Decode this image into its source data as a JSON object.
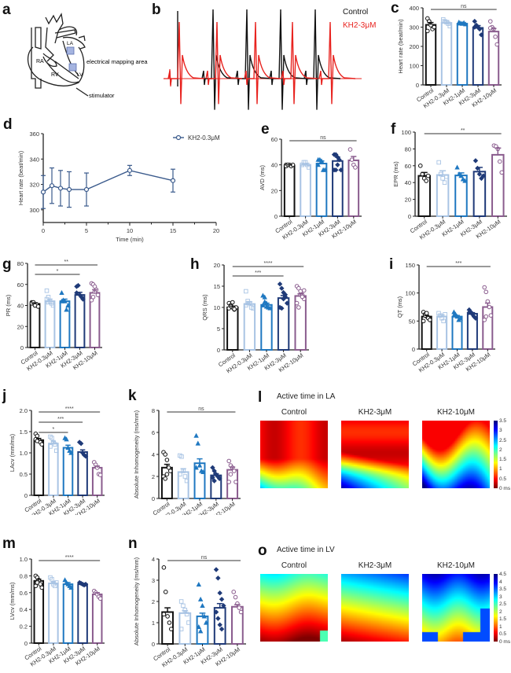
{
  "panels": {
    "a": {
      "letter": "a",
      "labels": {
        "ra": "RA",
        "rv": "RV",
        "la": "LA",
        "lv": "LV",
        "mapping": "electrical mapping area",
        "stimulator": "stimulator"
      }
    },
    "b": {
      "letter": "b",
      "legend": [
        {
          "name": "Control",
          "color": "#111111"
        },
        {
          "name": "KH2-3μM",
          "color": "#e8231f"
        }
      ]
    },
    "l": {
      "letter": "l",
      "title": "Active time in LA",
      "maps": [
        "Control",
        "KH2-3μM",
        "KH2-10μM"
      ],
      "colorbar_ticks": [
        "3.5",
        "3",
        "2.5",
        "2",
        "1.5",
        "1",
        "0.5",
        "0 ms"
      ]
    },
    "o": {
      "letter": "o",
      "title": "Active time in LV",
      "maps": [
        "Control",
        "KH2-3μM",
        "KH2-10μM"
      ],
      "colorbar_ticks": [
        "4.5",
        "4",
        "3.5",
        "3",
        "2.5",
        "2",
        "1.5",
        "1",
        "0.5",
        "0 ms"
      ]
    }
  },
  "group_colors": [
    "#111111",
    "#a9c4e4",
    "#1f78c1",
    "#1f3a78",
    "#8a5c8e"
  ],
  "chart_data": [
    {
      "id": "c",
      "letter": "c",
      "type": "bar",
      "categories": [
        "Control",
        "KH2-0.3μM",
        "KH2-1μM",
        "KH2-3μM",
        "KH2-10μM"
      ],
      "values": [
        312,
        322,
        318,
        296,
        277
      ],
      "errors": [
        12,
        12,
        6,
        12,
        16
      ],
      "points": [
        [
          345,
          330,
          310,
          290,
          300,
          280,
          330
        ],
        [
          340,
          330,
          325,
          318,
          305,
          330
        ],
        [
          325,
          320,
          318,
          322,
          315,
          320
        ],
        [
          330,
          310,
          300,
          290,
          260,
          300
        ],
        [
          330,
          300,
          290,
          250,
          210,
          295
        ]
      ],
      "markers": [
        "circle",
        "square",
        "triangle",
        "diamond",
        "circle"
      ],
      "ylabel": "Heart rate (beat/min)",
      "ylim": [
        0,
        400
      ],
      "yticks": [
        0,
        100,
        200,
        300,
        400
      ],
      "sig": [
        {
          "from": 0,
          "to": 4,
          "label": "ns"
        }
      ]
    },
    {
      "id": "d",
      "letter": "d",
      "type": "line",
      "series": [
        {
          "name": "KH2-0.3μM",
          "x": [
            0,
            1,
            2,
            3,
            5,
            10,
            15
          ],
          "y": [
            314,
            319,
            317,
            316,
            316,
            331,
            323
          ],
          "err": [
            13,
            14,
            14,
            14,
            13,
            4,
            9
          ]
        }
      ],
      "xlabel": "Time (min)",
      "ylabel": "Heart rate (beat/min)",
      "xlim": [
        0,
        20
      ],
      "xticks": [
        0,
        5,
        10,
        15,
        20
      ],
      "ylim": [
        290,
        360
      ],
      "yticks": [
        300,
        320,
        340,
        360
      ],
      "legend": "top-right",
      "color": "#3a5a8c"
    },
    {
      "id": "e",
      "letter": "e",
      "type": "bar",
      "categories": [
        "Control",
        "KH2-0.3μM",
        "KH2-1μM",
        "KH2-3μM",
        "KH2-10μM"
      ],
      "values": [
        39.5,
        40,
        41,
        43,
        43.5
      ],
      "errors": [
        0.5,
        1,
        2,
        3,
        3
      ],
      "points": [
        [
          40,
          40,
          40,
          39,
          40,
          39,
          40
        ],
        [
          40,
          42,
          42,
          40,
          38,
          40
        ],
        [
          44,
          44,
          43,
          36,
          36,
          40
        ],
        [
          48,
          48,
          46,
          44,
          36,
          36,
          36,
          40
        ],
        [
          52,
          44,
          40,
          38
        ]
      ],
      "markers": [
        "circle",
        "square",
        "triangle",
        "diamond",
        "circle"
      ],
      "ylabel": "AVD (ms)",
      "ylim": [
        0,
        60
      ],
      "yticks": [
        0,
        20,
        40,
        60
      ],
      "sig": [
        {
          "from": 0,
          "to": 4,
          "label": "ns"
        }
      ]
    },
    {
      "id": "f",
      "letter": "f",
      "type": "bar",
      "categories": [
        "Control",
        "KH2-0.3μM",
        "KH2-1μM",
        "KH2-3μM",
        "KH2-10μM"
      ],
      "values": [
        48,
        49,
        48.5,
        53,
        73
      ],
      "errors": [
        4,
        5,
        3,
        5,
        8
      ],
      "points": [
        [
          60,
          50,
          45,
          42,
          48
        ],
        [
          64,
          50,
          45,
          40,
          47
        ],
        [
          58,
          50,
          48,
          44,
          42
        ],
        [
          66,
          57,
          50,
          45,
          48
        ],
        [
          84,
          83,
          80,
          65,
          52
        ]
      ],
      "markers": [
        "circle",
        "square",
        "triangle",
        "diamond",
        "circle"
      ],
      "ylabel": "EPR (ms)",
      "ylim": [
        0,
        100
      ],
      "yticks": [
        0,
        20,
        40,
        60,
        80,
        100
      ],
      "sig": [
        {
          "from": 0,
          "to": 4,
          "label": "**"
        }
      ]
    },
    {
      "id": "g",
      "letter": "g",
      "type": "bar",
      "categories": [
        "Control",
        "KH2-0.3μM",
        "KH2-1μM",
        "KH2-3μM",
        "KH2-10μM"
      ],
      "values": [
        41.5,
        44,
        44,
        50,
        52
      ],
      "errors": [
        1,
        2,
        2,
        2.5,
        3
      ],
      "points": [
        [
          43,
          42,
          40,
          41,
          39,
          42,
          43,
          40
        ],
        [
          54,
          48,
          44,
          42,
          40,
          46,
          43
        ],
        [
          52,
          45,
          44,
          36,
          40,
          44
        ],
        [
          58,
          59,
          50,
          48,
          46,
          52
        ],
        [
          61,
          60,
          58,
          55,
          50,
          45,
          48,
          53
        ]
      ],
      "markers": [
        "circle",
        "square",
        "triangle",
        "diamond",
        "circle"
      ],
      "ylabel": "PR (ms)",
      "ylim": [
        0,
        80
      ],
      "yticks": [
        0,
        20,
        40,
        60,
        80
      ],
      "sig": [
        {
          "from": 0,
          "to": 4,
          "label": "**"
        },
        {
          "from": 0,
          "to": 3,
          "label": "*"
        }
      ]
    },
    {
      "id": "h",
      "letter": "h",
      "type": "bar",
      "categories": [
        "Control",
        "KH2-0.3μM",
        "KH2-1μM",
        "KH2-3μM",
        "KH2-10μM"
      ],
      "values": [
        10,
        10.8,
        10.6,
        12.2,
        12.7
      ],
      "errors": [
        0.3,
        0.5,
        0.4,
        0.6,
        0.5
      ],
      "points": [
        [
          11,
          10.5,
          10,
          9.5,
          10,
          9.8,
          10.3,
          11.2,
          9.6
        ],
        [
          13.8,
          11.5,
          11,
          10,
          9.8,
          10.5,
          11
        ],
        [
          12.8,
          12.4,
          11,
          10,
          9.8,
          10.5,
          11.3,
          10.2
        ],
        [
          15.5,
          14.5,
          13.5,
          12.5,
          11,
          10,
          9.8,
          12,
          13
        ],
        [
          15,
          14.5,
          13.8,
          13,
          12,
          11,
          10,
          13,
          12.5,
          14
        ]
      ],
      "markers": [
        "circle",
        "square",
        "triangle",
        "diamond",
        "circle"
      ],
      "ylabel": "QRS (ms)",
      "ylim": [
        0,
        20
      ],
      "yticks": [
        0,
        5,
        10,
        15,
        20
      ],
      "sig": [
        {
          "from": 0,
          "to": 4,
          "label": "****"
        },
        {
          "from": 0,
          "to": 3,
          "label": "***"
        }
      ]
    },
    {
      "id": "i",
      "letter": "i",
      "type": "bar",
      "categories": [
        "Control",
        "KH2-0.3μM",
        "KH2-1μM",
        "KH2-3μM",
        "KH2-10μM"
      ],
      "values": [
        58,
        58,
        58,
        63,
        75
      ],
      "errors": [
        2,
        3,
        2,
        2,
        7
      ],
      "points": [
        [
          66,
          62,
          58,
          55,
          52,
          50,
          60,
          64
        ],
        [
          64,
          60,
          55,
          50,
          62
        ],
        [
          66,
          62,
          58,
          52,
          55,
          60
        ],
        [
          70,
          66,
          62,
          58,
          55,
          65
        ],
        [
          110,
          102,
          85,
          75,
          60,
          52,
          58
        ]
      ],
      "markers": [
        "circle",
        "square",
        "triangle",
        "diamond",
        "circle"
      ],
      "ylabel": "QT (ms)",
      "ylim": [
        0,
        150
      ],
      "yticks": [
        0,
        50,
        100,
        150
      ],
      "sig": [
        {
          "from": 0,
          "to": 4,
          "label": "***"
        }
      ]
    },
    {
      "id": "j",
      "letter": "j",
      "type": "bar",
      "categories": [
        "Control",
        "KH2-0.3μM",
        "KH2-1μM",
        "KH2-3μM",
        "KH2-10μM"
      ],
      "values": [
        1.3,
        1.22,
        1.12,
        1.02,
        0.65
      ],
      "errors": [
        0.04,
        0.05,
        0.06,
        0.05,
        0.04
      ],
      "points": [
        [
          1.45,
          1.4,
          1.3,
          1.25,
          1.2,
          1.32,
          1.28
        ],
        [
          1.38,
          1.35,
          1.25,
          1.2,
          1.05,
          1.15
        ],
        [
          1.35,
          1.32,
          1.12,
          1.05,
          1.0
        ],
        [
          1.25,
          1.22,
          1.0,
          0.95,
          0.92
        ],
        [
          0.78,
          0.72,
          0.65,
          0.5,
          0.48
        ]
      ],
      "markers": [
        "circle",
        "square",
        "triangle",
        "diamond",
        "circle"
      ],
      "ylabel": "LAcv (mm/ms)",
      "ylim": [
        0,
        2.0
      ],
      "yticks": [
        0,
        0.5,
        1.0,
        1.5,
        2.0
      ],
      "ytick_labels": [
        "0",
        "0.5",
        "1.0",
        "1.5",
        "2.0"
      ],
      "sig": [
        {
          "from": 0,
          "to": 4,
          "label": "****"
        },
        {
          "from": 0,
          "to": 3,
          "label": "***"
        },
        {
          "from": 0,
          "to": 2,
          "label": "*"
        }
      ]
    },
    {
      "id": "k",
      "letter": "k",
      "type": "bar",
      "categories": [
        "Control",
        "KH2-0.3μM",
        "KH2-1μM",
        "KH2-3μM",
        "KH2-10μM"
      ],
      "values": [
        2.8,
        2.4,
        3.2,
        2.1,
        2.6
      ],
      "errors": [
        0.3,
        0.3,
        0.4,
        0.15,
        0.25
      ],
      "points": [
        [
          4.2,
          4.0,
          3.5,
          2.8,
          2.5,
          2.0,
          1.8,
          2.2
        ],
        [
          3.9,
          3.8,
          2.5,
          2.0,
          1.6,
          2.2
        ],
        [
          5.7,
          5.0,
          3.0,
          2.5,
          2.4,
          2.8
        ],
        [
          2.8,
          2.5,
          2.2,
          2.0,
          1.8,
          1.9,
          1.6
        ],
        [
          3.4,
          3.0,
          2.8,
          2.5,
          1.5,
          1.5,
          2.2
        ]
      ],
      "markers": [
        "circle",
        "square",
        "triangle",
        "diamond",
        "circle"
      ],
      "ylabel": "Absolute Inhomogeneity (ms/mm)",
      "ylim": [
        0,
        8
      ],
      "yticks": [
        0,
        2,
        4,
        6,
        8
      ],
      "sig": [
        {
          "from": 0,
          "to": 4,
          "label": "ns"
        }
      ]
    },
    {
      "id": "m",
      "letter": "m",
      "type": "bar",
      "categories": [
        "Control",
        "KH2-0.3μM",
        "KH2-1μM",
        "KH2-3μM",
        "KH2-10μM"
      ],
      "values": [
        0.74,
        0.71,
        0.7,
        0.7,
        0.58
      ],
      "errors": [
        0.02,
        0.02,
        0.02,
        0.01,
        0.02
      ],
      "points": [
        [
          0.8,
          0.78,
          0.75,
          0.7,
          0.66,
          0.68,
          0.72
        ],
        [
          0.78,
          0.76,
          0.7,
          0.68,
          0.72
        ],
        [
          0.75,
          0.72,
          0.7,
          0.68,
          0.66
        ],
        [
          0.72,
          0.71,
          0.7,
          0.69,
          0.7
        ],
        [
          0.62,
          0.6,
          0.58,
          0.55,
          0.53
        ]
      ],
      "markers": [
        "circle",
        "square",
        "triangle",
        "diamond",
        "circle"
      ],
      "ylabel": "LVcv (mm/ms)",
      "ylim": [
        0,
        1.0
      ],
      "yticks": [
        0,
        0.2,
        0.4,
        0.6,
        0.8,
        1.0
      ],
      "ytick_labels": [
        "0",
        "0.2",
        "0.4",
        "0.6",
        "0.8",
        "1.0"
      ],
      "sig": [
        {
          "from": 0,
          "to": 4,
          "label": "****"
        }
      ]
    },
    {
      "id": "n",
      "letter": "n",
      "type": "bar",
      "categories": [
        "Control",
        "KH2-0.3μM",
        "KH2-1μM",
        "KH2-3μM",
        "KH2-10μM"
      ],
      "values": [
        1.5,
        1.45,
        1.3,
        1.7,
        1.75
      ],
      "errors": [
        0.2,
        0.12,
        0.15,
        0.2,
        0.1
      ],
      "points": [
        [
          3.6,
          2.45,
          1.3,
          1.0,
          0.7,
          1.4
        ],
        [
          2.0,
          1.8,
          1.6,
          1.4,
          1.0,
          0.7
        ],
        [
          2.8,
          2.1,
          1.8,
          1.3,
          1.0,
          0.8,
          0.6
        ],
        [
          3.5,
          3.1,
          2.4,
          2.1,
          1.8,
          1.5,
          1.2,
          0.9,
          0.7
        ],
        [
          2.45,
          2.2,
          1.9,
          1.7,
          1.5
        ]
      ],
      "markers": [
        "circle",
        "square",
        "triangle",
        "diamond",
        "circle"
      ],
      "ylabel": "Absolute Inhomogeneity (ms/mm)",
      "ylim": [
        0,
        4
      ],
      "yticks": [
        0,
        1,
        2,
        3,
        4
      ],
      "sig": [
        {
          "from": 0,
          "to": 4,
          "label": "ns"
        }
      ]
    }
  ]
}
